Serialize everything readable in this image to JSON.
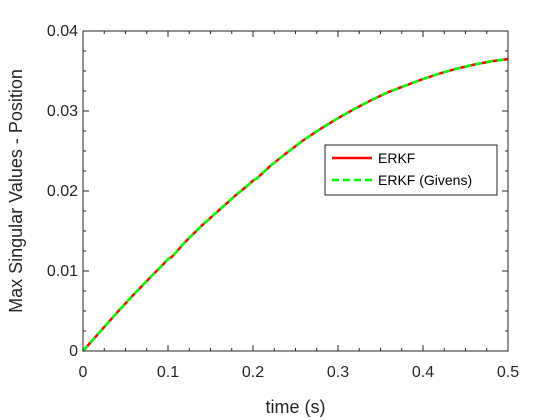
{
  "chart_data": {
    "type": "line",
    "title": "",
    "xlabel": "time (s)",
    "ylabel": "Max Singular Values - Position",
    "xlim": [
      0,
      0.5
    ],
    "ylim": [
      0,
      0.04
    ],
    "xticks": [
      0,
      0.1,
      0.2,
      0.3,
      0.4,
      0.5
    ],
    "xtick_labels": [
      "0",
      "0.1",
      "0.2",
      "0.3",
      "0.4",
      "0.5"
    ],
    "yticks": [
      0,
      0.01,
      0.02,
      0.03,
      0.04
    ],
    "ytick_labels": [
      "0",
      "0.01",
      "0.02",
      "0.03",
      "0.04"
    ],
    "grid": false,
    "legend_position": "right",
    "series": [
      {
        "name": "ERKF",
        "color": "#ff0000",
        "style": "solid",
        "x": [
          0,
          0.02,
          0.04,
          0.06,
          0.08,
          0.095,
          0.1,
          0.105,
          0.12,
          0.14,
          0.16,
          0.18,
          0.195,
          0.2,
          0.205,
          0.22,
          0.24,
          0.26,
          0.28,
          0.3,
          0.32,
          0.34,
          0.36,
          0.38,
          0.4,
          0.42,
          0.44,
          0.46,
          0.48,
          0.5
        ],
        "y": [
          0,
          0.0024,
          0.0048,
          0.0071,
          0.0093,
          0.0109,
          0.0115,
          0.0118,
          0.0136,
          0.0157,
          0.0176,
          0.0195,
          0.0208,
          0.0213,
          0.0216,
          0.0231,
          0.0248,
          0.0264,
          0.0278,
          0.0291,
          0.0303,
          0.0314,
          0.0324,
          0.0332,
          0.034,
          0.0347,
          0.0353,
          0.0358,
          0.0362,
          0.0365
        ]
      },
      {
        "name": "ERKF (Givens)",
        "color": "#00ff00",
        "style": "dashed",
        "x": [
          0,
          0.02,
          0.04,
          0.06,
          0.08,
          0.095,
          0.1,
          0.105,
          0.12,
          0.14,
          0.16,
          0.18,
          0.195,
          0.2,
          0.205,
          0.22,
          0.24,
          0.26,
          0.28,
          0.3,
          0.32,
          0.34,
          0.36,
          0.38,
          0.4,
          0.42,
          0.44,
          0.46,
          0.48,
          0.5
        ],
        "y": [
          0,
          0.0024,
          0.0048,
          0.0071,
          0.0093,
          0.0109,
          0.0115,
          0.0118,
          0.0136,
          0.0157,
          0.0176,
          0.0195,
          0.0208,
          0.0213,
          0.0216,
          0.0231,
          0.0248,
          0.0264,
          0.0278,
          0.0291,
          0.0303,
          0.0314,
          0.0324,
          0.0332,
          0.034,
          0.0347,
          0.0353,
          0.0358,
          0.0362,
          0.0365
        ]
      }
    ]
  }
}
